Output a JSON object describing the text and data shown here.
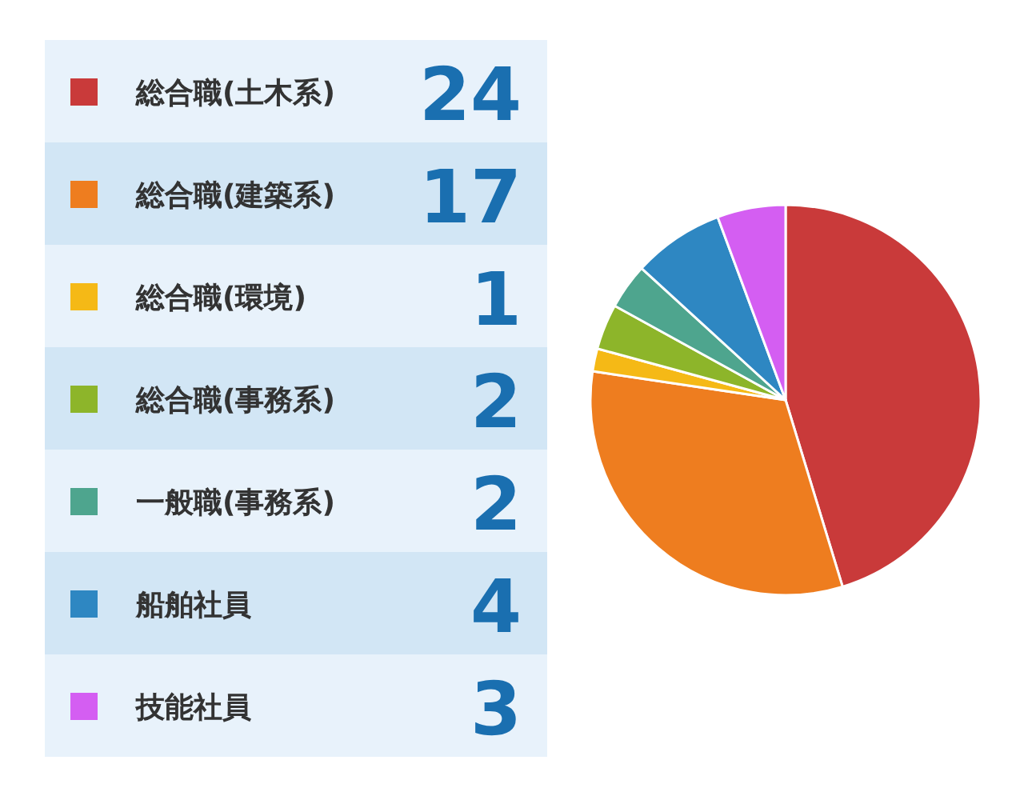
{
  "chart_data": {
    "type": "pie",
    "categories": [
      "総合職(土木系)",
      "総合職(建築系)",
      "総合職(環境)",
      "総合職(事務系)",
      "一般職(事務系)",
      "船舶社員",
      "技能社員"
    ],
    "values": [
      24,
      17,
      1,
      2,
      2,
      4,
      3
    ],
    "colors": [
      "#c93a3a",
      "#ee7d1f",
      "#f5b916",
      "#8db52a",
      "#4ea58e",
      "#2e87c2",
      "#d45ef2"
    ],
    "data_labels": true,
    "legend": "left"
  }
}
